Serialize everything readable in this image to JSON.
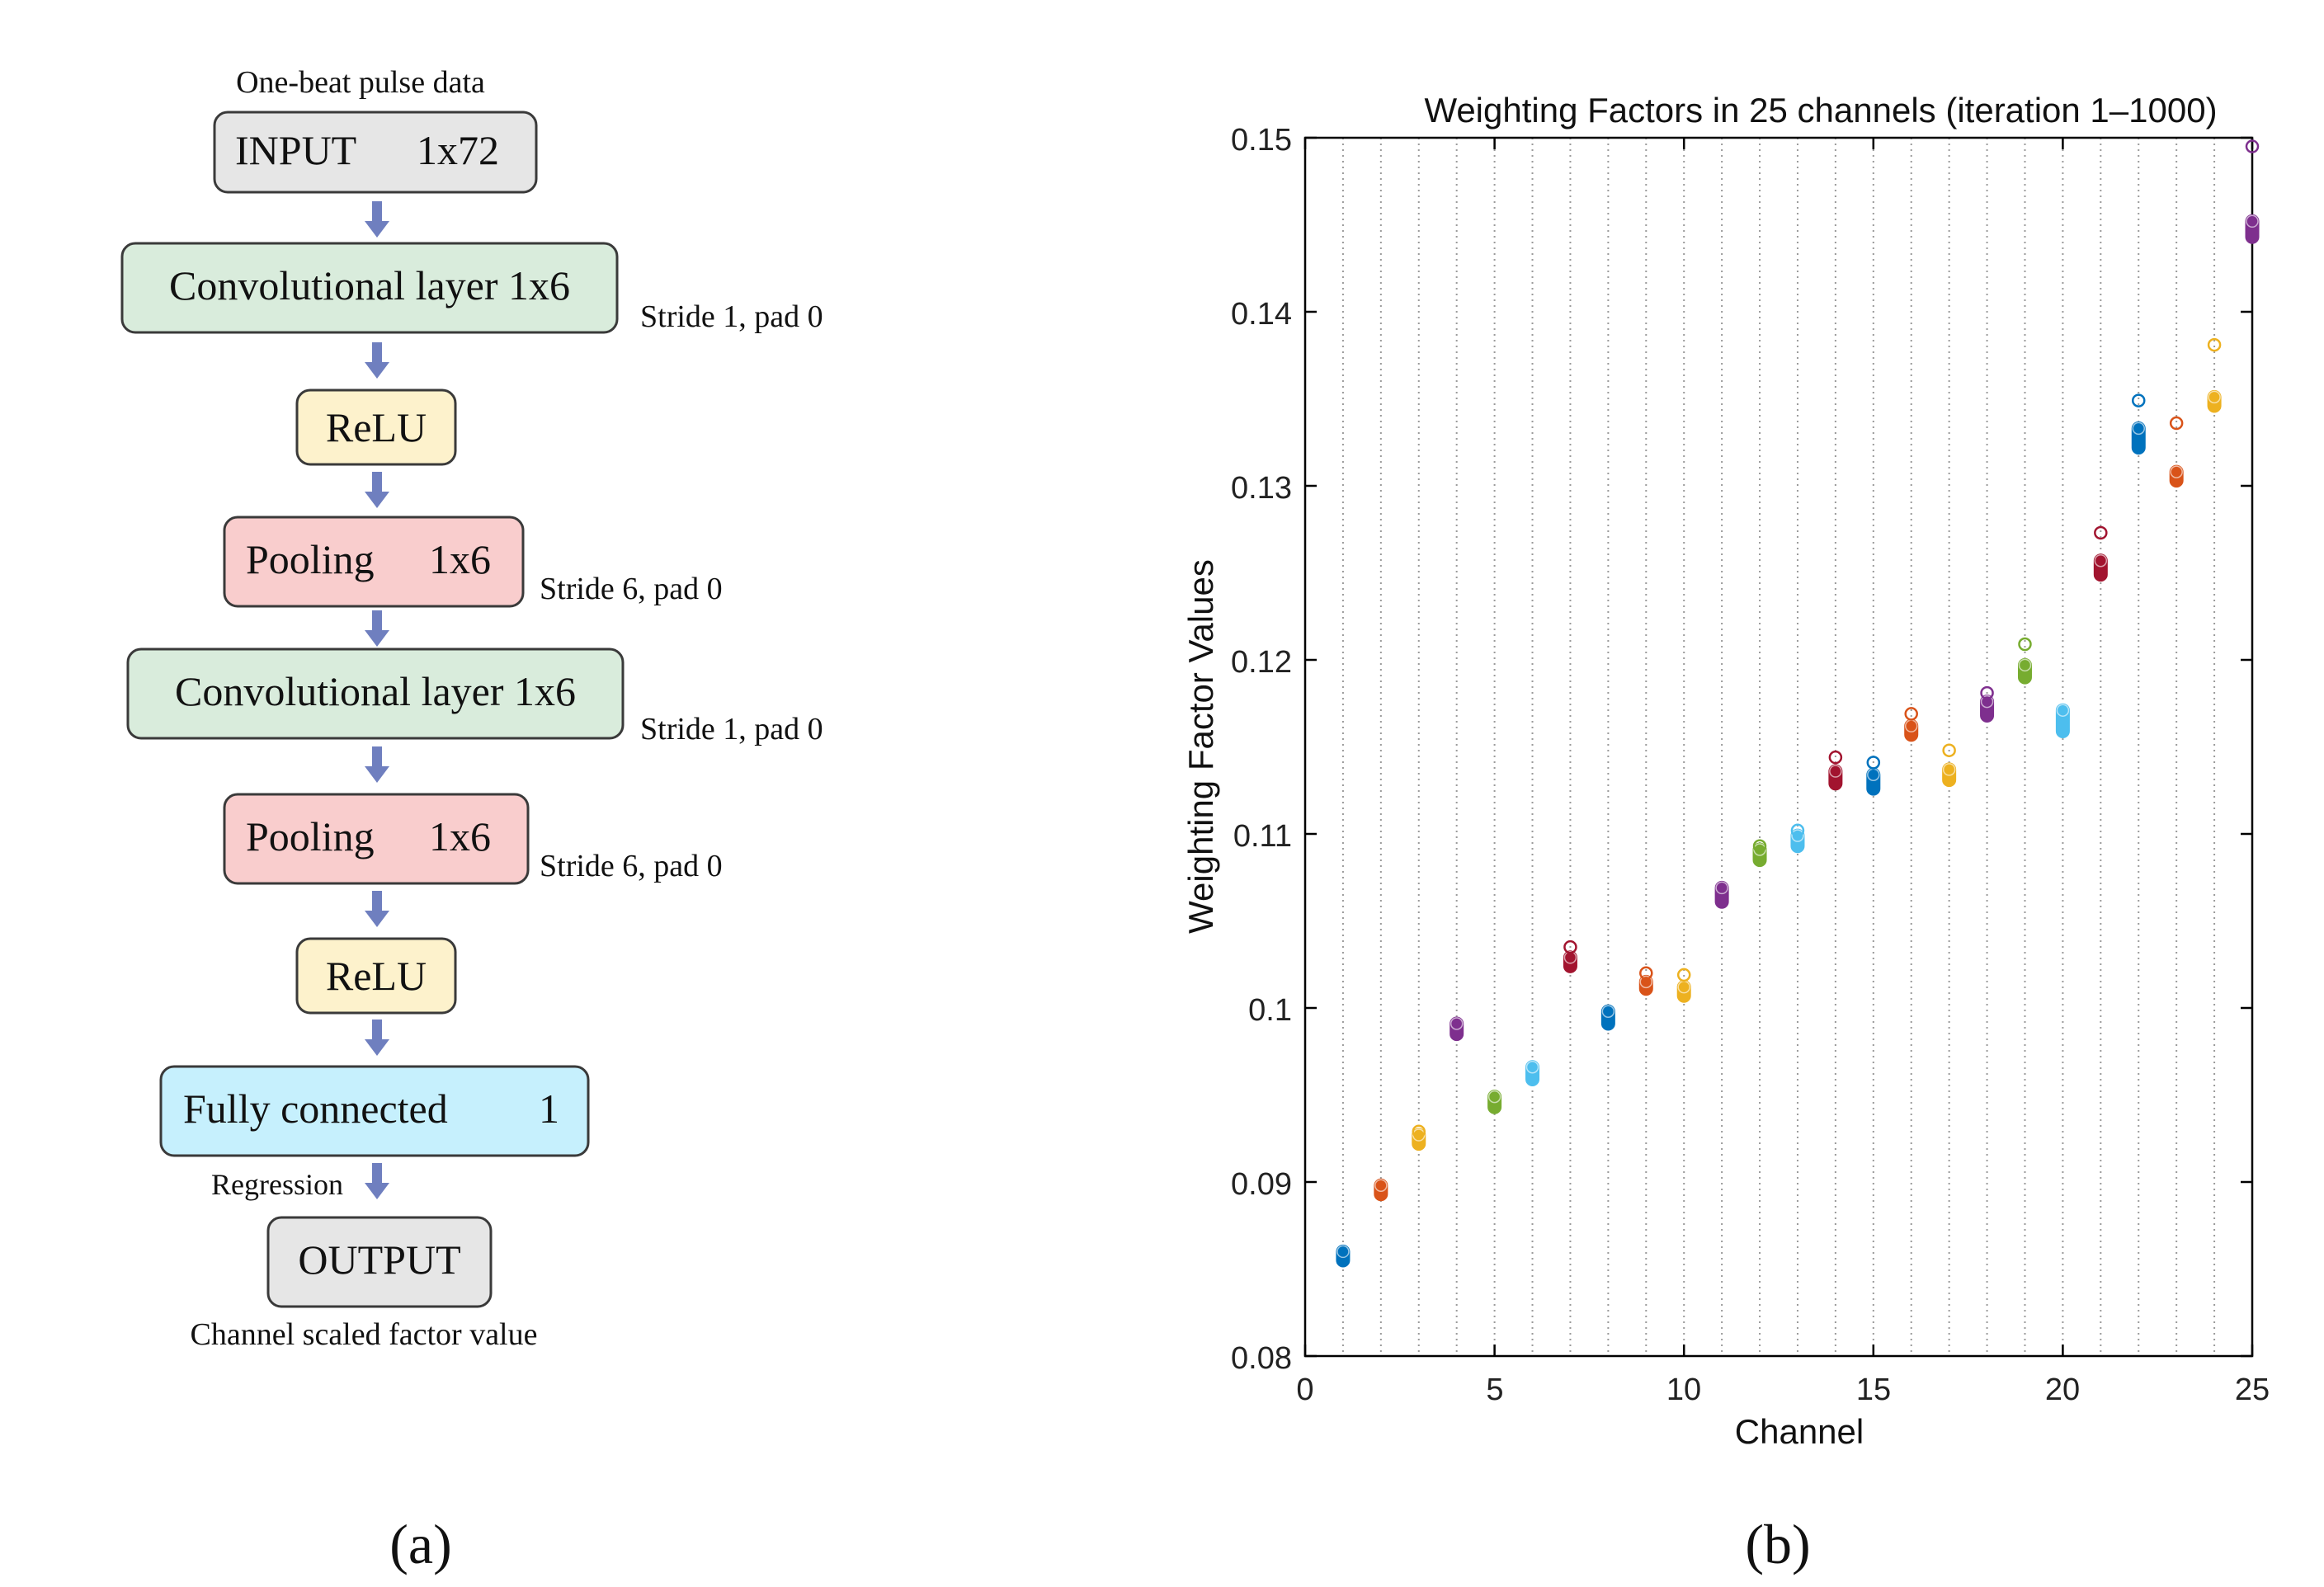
{
  "panel_a": {
    "label": "(a)",
    "input_caption": "One-beat pulse data",
    "output_caption": "Channel scaled factor value",
    "regression_label": "Regression",
    "blocks": [
      {
        "left": "INPUT",
        "right": "1x72",
        "note": ""
      },
      {
        "left": "Convolutional layer 1x6",
        "right": "",
        "note": "Stride 1, pad 0"
      },
      {
        "left": "ReLU",
        "right": "",
        "note": ""
      },
      {
        "left": "Pooling",
        "right": "1x6",
        "note": "Stride 6, pad 0"
      },
      {
        "left": "Convolutional layer 1x6",
        "right": "",
        "note": "Stride 1, pad 0"
      },
      {
        "left": "Pooling",
        "right": "1x6",
        "note": "Stride 6, pad 0"
      },
      {
        "left": "ReLU",
        "right": "",
        "note": ""
      },
      {
        "left": "Fully connected",
        "right": "1",
        "note": ""
      },
      {
        "left": "OUTPUT",
        "right": "",
        "note": ""
      }
    ],
    "colors": {
      "gray": "#e6e6e6",
      "green": "#d9ecdc",
      "yellow": "#fdf2cc",
      "red": "#f9cdcd",
      "cyan": "#c6f0fd",
      "arrow": "#6f7fbf",
      "border": "#3a3a3a"
    }
  },
  "panel_b": {
    "label": "(b)"
  },
  "chart_data": {
    "type": "scatter",
    "title": "Weighting Factors in 25 channels (iteration 1–1000)",
    "xlabel": "Channel",
    "ylabel": "Weighting Factor Values",
    "xlim": [
      0,
      25
    ],
    "ylim": [
      0.08,
      0.15
    ],
    "xticks": [
      0,
      5,
      10,
      15,
      20,
      25
    ],
    "yticks": [
      0.08,
      0.09,
      0.1,
      0.11,
      0.12,
      0.13,
      0.14,
      0.15
    ],
    "ytick_labels": [
      "0.08",
      "0.09",
      "0.1",
      "0.11",
      "0.12",
      "0.13",
      "0.14",
      "0.15"
    ],
    "vertical_grid": "dotted at each channel",
    "series": [
      {
        "channel": 1,
        "cluster": [
          0.0855,
          0.086
        ],
        "outlier": null,
        "color": "#0072bd"
      },
      {
        "channel": 2,
        "cluster": [
          0.0893,
          0.0898
        ],
        "outlier": null,
        "color": "#d95319"
      },
      {
        "channel": 3,
        "cluster": [
          0.0922,
          0.0927
        ],
        "outlier": 0.0929,
        "color": "#edb120"
      },
      {
        "channel": 4,
        "cluster": [
          0.0985,
          0.0991
        ],
        "outlier": null,
        "color": "#7e2f8e"
      },
      {
        "channel": 5,
        "cluster": [
          0.0943,
          0.0949
        ],
        "outlier": null,
        "color": "#77ac30"
      },
      {
        "channel": 6,
        "cluster": [
          0.0959,
          0.0966
        ],
        "outlier": null,
        "color": "#4dbeee"
      },
      {
        "channel": 7,
        "cluster": [
          0.1024,
          0.1029
        ],
        "outlier": 0.1035,
        "color": "#a2142f"
      },
      {
        "channel": 8,
        "cluster": [
          0.0991,
          0.0998
        ],
        "outlier": null,
        "color": "#0072bd"
      },
      {
        "channel": 9,
        "cluster": [
          0.1011,
          0.1015
        ],
        "outlier": 0.102,
        "color": "#d95319"
      },
      {
        "channel": 10,
        "cluster": [
          0.1007,
          0.1012
        ],
        "outlier": 0.1019,
        "color": "#edb120"
      },
      {
        "channel": 11,
        "cluster": [
          0.1061,
          0.1069
        ],
        "outlier": null,
        "color": "#7e2f8e"
      },
      {
        "channel": 12,
        "cluster": [
          0.1085,
          0.1091
        ],
        "outlier": 0.1093,
        "color": "#77ac30"
      },
      {
        "channel": 13,
        "cluster": [
          0.1093,
          0.1099
        ],
        "outlier": 0.1102,
        "color": "#4dbeee"
      },
      {
        "channel": 14,
        "cluster": [
          0.1129,
          0.1136
        ],
        "outlier": 0.1144,
        "color": "#a2142f"
      },
      {
        "channel": 15,
        "cluster": [
          0.1126,
          0.1134
        ],
        "outlier": 0.1141,
        "color": "#0072bd"
      },
      {
        "channel": 16,
        "cluster": [
          0.1157,
          0.1162
        ],
        "outlier": 0.1169,
        "color": "#d95319"
      },
      {
        "channel": 17,
        "cluster": [
          0.1131,
          0.1137
        ],
        "outlier": 0.1148,
        "color": "#edb120"
      },
      {
        "channel": 18,
        "cluster": [
          0.1168,
          0.1176
        ],
        "outlier": 0.1181,
        "color": "#7e2f8e"
      },
      {
        "channel": 19,
        "cluster": [
          0.119,
          0.1197
        ],
        "outlier": 0.1209,
        "color": "#77ac30"
      },
      {
        "channel": 20,
        "cluster": [
          0.1159,
          0.1171
        ],
        "outlier": null,
        "color": "#4dbeee"
      },
      {
        "channel": 21,
        "cluster": [
          0.1249,
          0.1257
        ],
        "outlier": 0.1273,
        "color": "#a2142f"
      },
      {
        "channel": 22,
        "cluster": [
          0.1322,
          0.1333
        ],
        "outlier": 0.1349,
        "color": "#0072bd"
      },
      {
        "channel": 23,
        "cluster": [
          0.1303,
          0.1308
        ],
        "outlier": 0.1336,
        "color": "#d95319"
      },
      {
        "channel": 24,
        "cluster": [
          0.1346,
          0.1351
        ],
        "outlier": 0.1381,
        "color": "#edb120"
      },
      {
        "channel": 25,
        "cluster": [
          0.1443,
          0.1452
        ],
        "outlier": 0.1495,
        "color": "#7e2f8e"
      }
    ]
  }
}
